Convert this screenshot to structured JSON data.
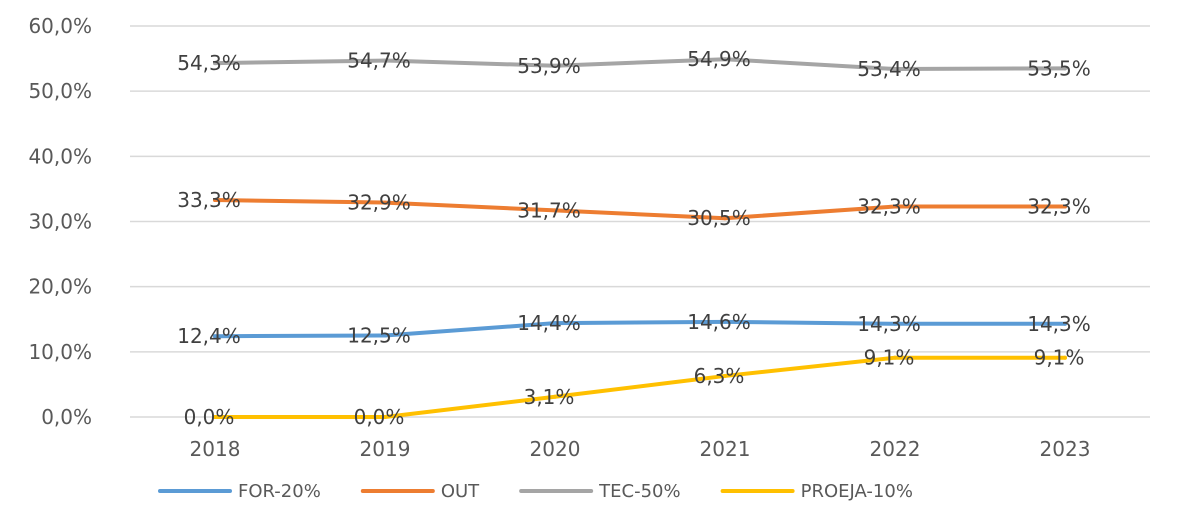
{
  "chart_data": {
    "type": "line",
    "categories": [
      "2018",
      "2019",
      "2020",
      "2021",
      "2022",
      "2023"
    ],
    "ylim": [
      0,
      60
    ],
    "yticks": [
      "0,0%",
      "10,0%",
      "20,0%",
      "30,0%",
      "40,0%",
      "50,0%",
      "60,0%"
    ],
    "grid": true,
    "legend_position": "bottom",
    "series": [
      {
        "name": "FOR-20%",
        "color": "#5b9bd5",
        "values": [
          12.4,
          12.5,
          14.4,
          14.6,
          14.3,
          14.3
        ],
        "labels": [
          "12,4%",
          "12,5%",
          "14,4%",
          "14,6%",
          "14,3%",
          "14,3%"
        ]
      },
      {
        "name": "OUT",
        "color": "#ed7d31",
        "values": [
          33.3,
          32.9,
          31.7,
          30.5,
          32.3,
          32.3
        ],
        "labels": [
          "33,3%",
          "32,9%",
          "31,7%",
          "30,5%",
          "32,3%",
          "32,3%"
        ]
      },
      {
        "name": "TEC-50%",
        "color": "#a5a5a5",
        "values": [
          54.3,
          54.7,
          53.9,
          54.9,
          53.4,
          53.5
        ],
        "labels": [
          "54,3%",
          "54,7%",
          "53,9%",
          "54,9%",
          "53,4%",
          "53,5%"
        ]
      },
      {
        "name": "PROEJA-10%",
        "color": "#ffc000",
        "values": [
          0.0,
          0.0,
          3.1,
          6.3,
          9.1,
          9.1
        ],
        "labels": [
          "0,0%",
          "0,0%",
          "3,1%",
          "6,3%",
          "9,1%",
          "9,1%"
        ]
      }
    ]
  }
}
